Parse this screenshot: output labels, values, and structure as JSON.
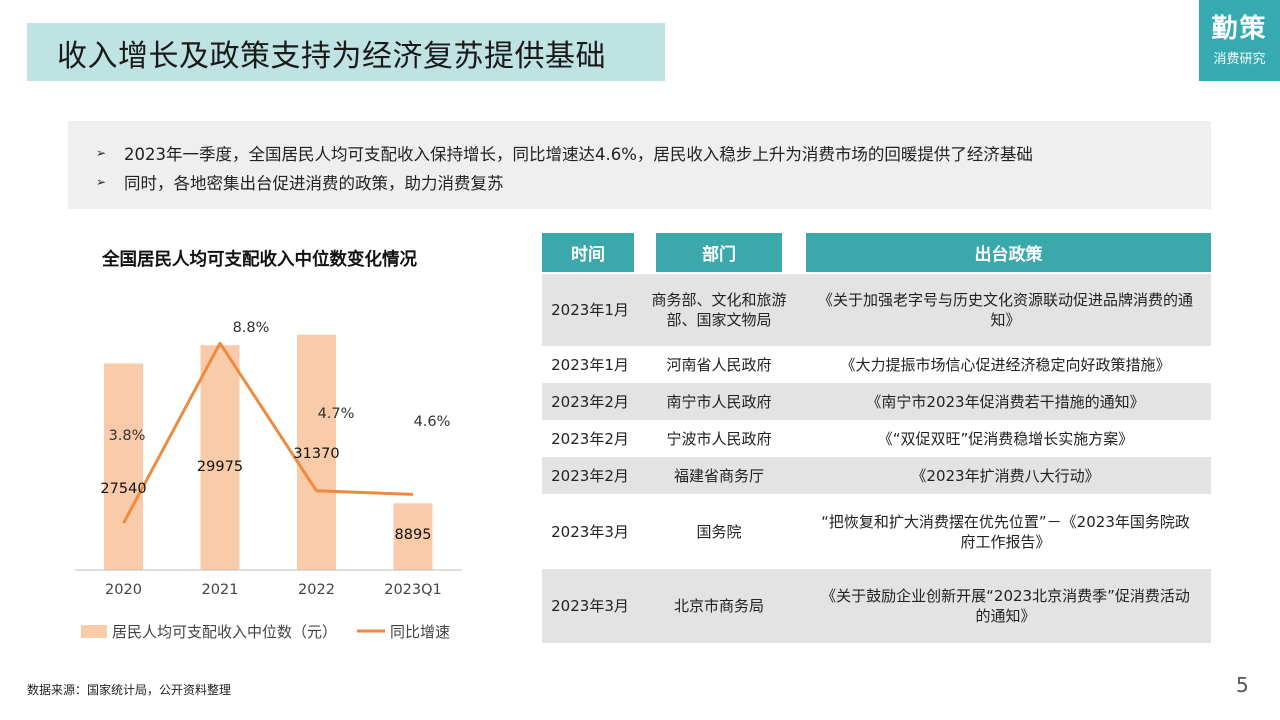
{
  "title": "收入增长及政策支持为经济复苏提供基础",
  "logo": {
    "main": "勤策",
    "sub": "消费研究"
  },
  "summary": {
    "bullets": [
      "2023年一季度，全国居民人均可支配收入保持增长，同比增速达4.6%，居民收入稳步上升为消费市场的回暖提供了经济基础",
      "同时，各地密集出台促进消费的政策，助力消费复苏"
    ]
  },
  "chart_title": "全国居民人均可支配收入中位数变化情况",
  "chart_data": {
    "type": "bar",
    "categories": [
      "2020",
      "2021",
      "2022",
      "2023Q1"
    ],
    "series": [
      {
        "name": "居民人均可支配收入中位数（元）",
        "type": "bar",
        "values": [
          27540,
          29975,
          31370,
          8895
        ],
        "labels": [
          "27540",
          "29975",
          "31370",
          "8895"
        ],
        "color": "#f9cba8"
      },
      {
        "name": "同比增速",
        "type": "line",
        "values": [
          3.8,
          8.8,
          4.7,
          4.6
        ],
        "labels": [
          "3.8%",
          "8.8%",
          "4.7%",
          "4.6%"
        ],
        "color": "#ef8a3e"
      }
    ],
    "y_bar_range": [
      0,
      36000
    ],
    "y_line_range": [
      2.5,
      10
    ],
    "legend": "bottom"
  },
  "table": {
    "headers": {
      "time": "时间",
      "dept": "部门",
      "policy": "出台政策"
    },
    "rows": [
      {
        "time": "2023年1月",
        "dept": "商务部、文化和旅游部、国家文物局",
        "policy": "《关于加强老字号与历史文化资源联动促进品牌消费的通知》"
      },
      {
        "time": "2023年1月",
        "dept": "河南省人民政府",
        "policy": "《大力提振市场信心促进经济稳定向好政策措施》"
      },
      {
        "time": "2023年2月",
        "dept": "南宁市人民政府",
        "policy": "《南宁市2023年促消费若干措施的通知》"
      },
      {
        "time": "2023年2月",
        "dept": "宁波市人民政府",
        "policy": "《“双促双旺”促消费稳增长实施方案》"
      },
      {
        "time": "2023年2月",
        "dept": "福建省商务厅",
        "policy": "《2023年扩消费八大行动》"
      },
      {
        "time": "2023年3月",
        "dept": "国务院",
        "policy": "“把恢复和扩大消费摆在优先位置”－《2023年国务院政府工作报告》"
      },
      {
        "time": "2023年3月",
        "dept": "北京市商务局",
        "policy": "《关于鼓励企业创新开展“2023北京消费季”促消费活动的通知》"
      }
    ]
  },
  "source": "数据来源：国家统计局，公开资料整理",
  "page_number": "5"
}
